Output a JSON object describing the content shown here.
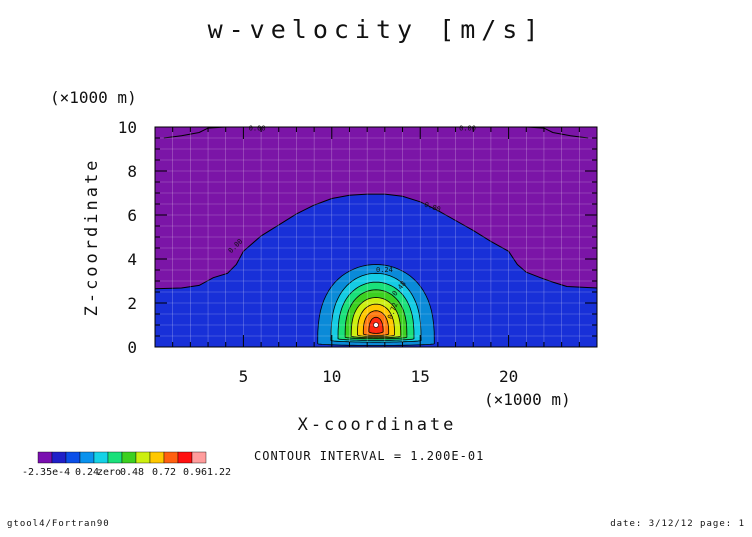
{
  "chart_data": {
    "type": "heatmap",
    "title": "w-velocity [m/s]",
    "xlabel": "X-coordinate",
    "ylabel": "Z-coordinate",
    "x_unit": "(×1000 m)",
    "y_unit": "(×1000 m)",
    "xlim": [
      0,
      25
    ],
    "ylim": [
      0,
      10
    ],
    "x_ticks": [
      5,
      10,
      15,
      20
    ],
    "y_ticks": [
      0,
      2,
      4,
      6,
      8,
      10
    ],
    "grid": true,
    "contour_interval_text": "CONTOUR INTERVAL = 1.200E-01",
    "contour_interval": 0.12,
    "colorbar": {
      "levels": [
        -0.000235,
        0.12,
        0.24,
        0.36,
        0.48,
        0.6,
        0.72,
        0.84,
        0.96,
        1.08,
        1.2,
        1.22
      ],
      "colors": [
        "#7a0fb0",
        "#2020c8",
        "#0b4fe8",
        "#0a92ee",
        "#15d2e6",
        "#1ae07a",
        "#3cd020",
        "#ccef10",
        "#ffc800",
        "#ff6010",
        "#ff1010",
        "#ff9c9c"
      ],
      "tick_labels": [
        "-2.35e-4",
        "0.24",
        "zero",
        "0.48",
        "0.72",
        "0.96",
        "1.22"
      ]
    },
    "background_region": {
      "color": "#7b15a7",
      "label": "0.00"
    },
    "positive_region": {
      "color": "#1830d8",
      "label": "0.00",
      "label2": "0.00"
    },
    "contour_labels": [
      "0.24",
      "0.48",
      "0.72",
      "0.00",
      "0.00",
      "0.00",
      "0.00"
    ],
    "maximum_center": {
      "x": 12.5,
      "z": 1.0
    }
  },
  "footer": {
    "left": "gtool4/Fortran90",
    "right": "date: 3/12/12 page: 1"
  },
  "colors": {
    "background": "#ffffff",
    "axis": "#000000",
    "grid": "#ffffff"
  }
}
